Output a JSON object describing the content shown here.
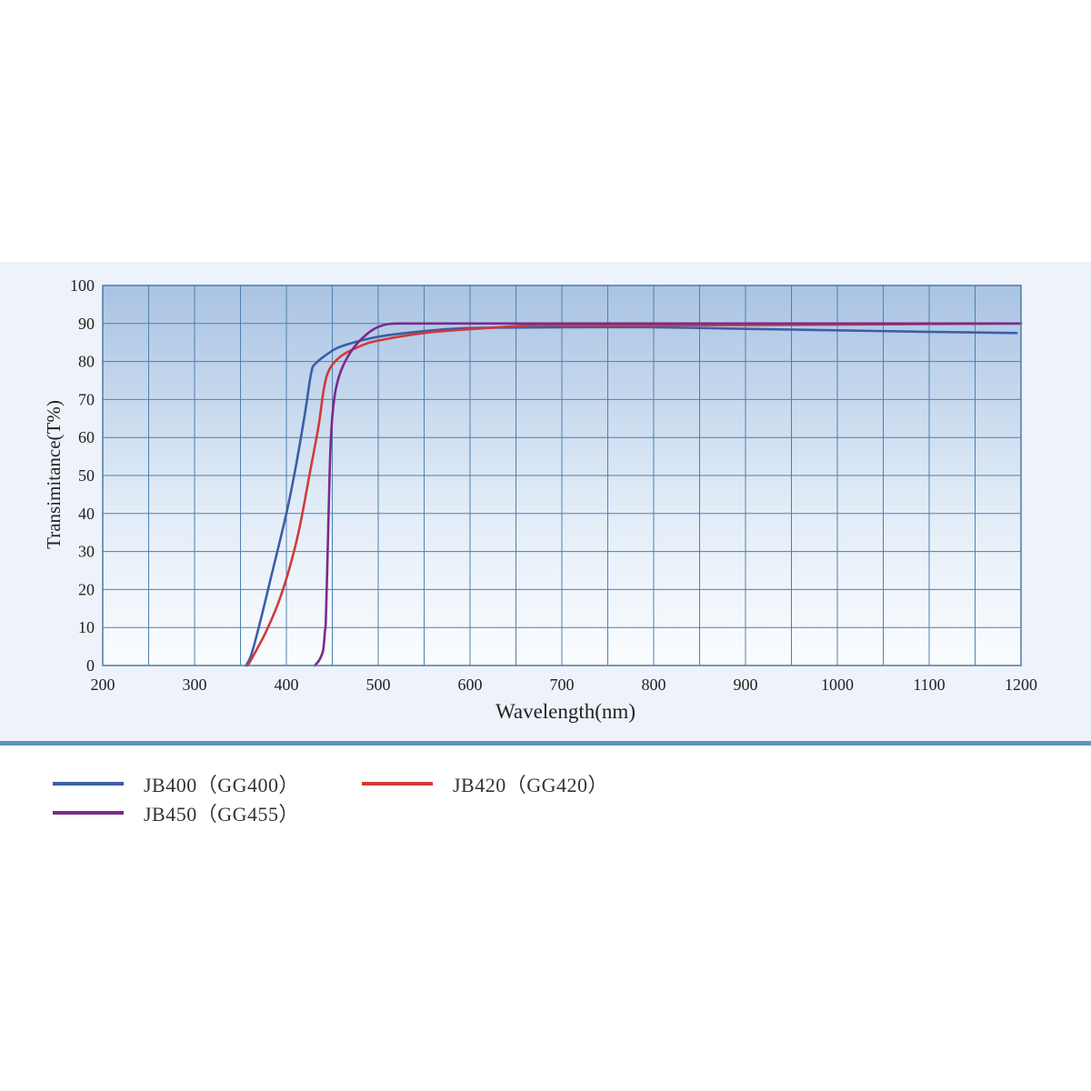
{
  "chart_data": {
    "type": "line",
    "xlabel": "Wavelength(nm)",
    "ylabel": "Transimitance(T%)",
    "xlim": [
      200,
      1200
    ],
    "ylim": [
      0,
      100
    ],
    "x_ticks": [
      200,
      300,
      400,
      500,
      600,
      700,
      800,
      900,
      1000,
      1100,
      1200
    ],
    "y_ticks": [
      0,
      10,
      20,
      30,
      40,
      50,
      60,
      70,
      80,
      90,
      100
    ],
    "grid": true,
    "legend_position": "below",
    "series": [
      {
        "name": "JB400（GG400）",
        "color": "#3a5ea8",
        "points": [
          [
            356,
            0
          ],
          [
            362,
            3
          ],
          [
            372,
            12
          ],
          [
            385,
            25
          ],
          [
            400,
            40
          ],
          [
            410,
            52
          ],
          [
            420,
            66
          ],
          [
            427,
            77
          ],
          [
            432,
            79.5
          ],
          [
            445,
            82
          ],
          [
            460,
            84
          ],
          [
            500,
            86.5
          ],
          [
            550,
            88
          ],
          [
            600,
            88.8
          ],
          [
            700,
            89
          ],
          [
            800,
            89
          ],
          [
            900,
            88.6
          ],
          [
            1000,
            88.2
          ],
          [
            1100,
            87.8
          ],
          [
            1195,
            87.5
          ]
        ]
      },
      {
        "name": "JB420（GG420）",
        "color": "#d03a3a",
        "points": [
          [
            358,
            0
          ],
          [
            365,
            3
          ],
          [
            378,
            9
          ],
          [
            392,
            17
          ],
          [
            405,
            27
          ],
          [
            415,
            37
          ],
          [
            425,
            50
          ],
          [
            435,
            63
          ],
          [
            441,
            73
          ],
          [
            447,
            78
          ],
          [
            460,
            81.5
          ],
          [
            480,
            84
          ],
          [
            500,
            85.5
          ],
          [
            550,
            87.5
          ],
          [
            600,
            88.5
          ],
          [
            665,
            89.5
          ],
          [
            700,
            89.5
          ],
          [
            800,
            89.5
          ],
          [
            1000,
            89.7
          ],
          [
            1200,
            90
          ]
        ]
      },
      {
        "name": "JB450（GG455）",
        "color": "#7b2a8c",
        "points": [
          [
            431,
            0
          ],
          [
            436,
            1.5
          ],
          [
            440,
            4
          ],
          [
            442,
            9
          ],
          [
            443,
            12
          ],
          [
            445,
            30
          ],
          [
            447,
            50
          ],
          [
            449,
            62
          ],
          [
            452,
            70
          ],
          [
            456,
            75
          ],
          [
            462,
            79
          ],
          [
            470,
            82.5
          ],
          [
            480,
            85.5
          ],
          [
            495,
            88.5
          ],
          [
            510,
            89.8
          ],
          [
            530,
            90
          ],
          [
            600,
            90
          ],
          [
            800,
            90
          ],
          [
            1000,
            90
          ],
          [
            1200,
            90
          ]
        ]
      }
    ]
  },
  "legend": {
    "items": [
      {
        "label": "JB400（GG400）",
        "color": "#3a5ea8"
      },
      {
        "label": "JB420（GG420）",
        "color": "#d03a3a"
      },
      {
        "label": "JB450（GG455）",
        "color": "#7b2a8c"
      }
    ]
  }
}
